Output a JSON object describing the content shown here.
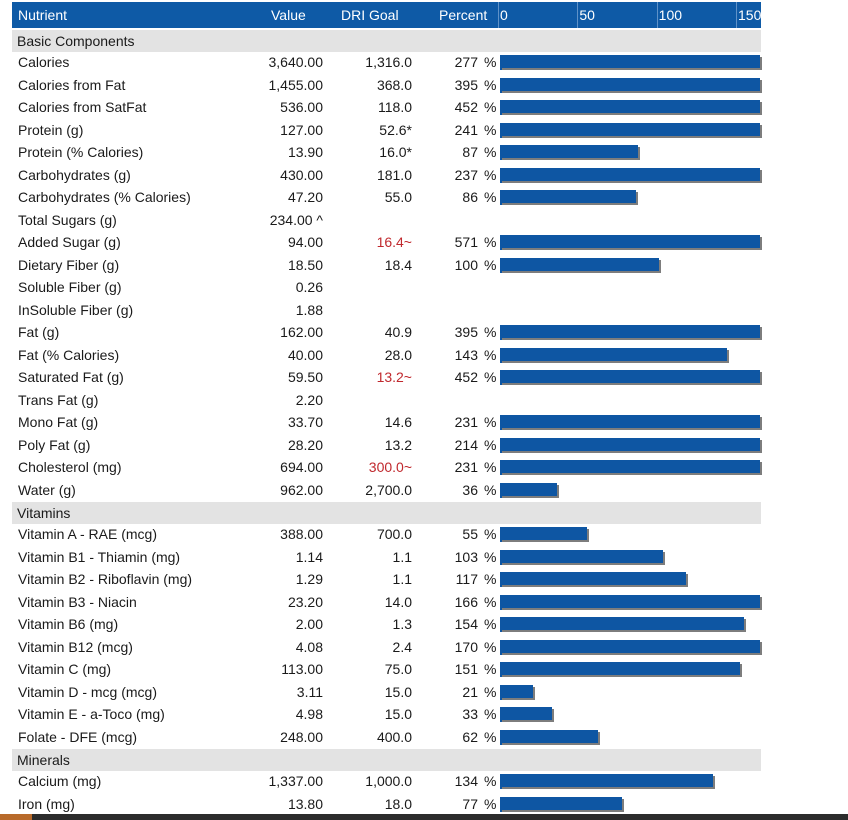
{
  "header": {
    "nutrient": "Nutrient",
    "value": "Value",
    "goal": "DRI Goal",
    "percent": "Percent"
  },
  "chart_data": {
    "type": "bar",
    "orientation": "horizontal",
    "xlim": [
      0,
      150
    ],
    "ticks": [
      "0",
      "50",
      "100",
      "150"
    ],
    "tick_values": [
      0,
      50,
      100,
      150
    ],
    "bar_color": "#0e56a3",
    "header_color": "#0e5aa6",
    "warn_color": "#c0282d"
  },
  "sections": [
    {
      "title": "Basic Components",
      "rows": [
        {
          "name": "Calories",
          "value": "3,640.00",
          "goal": "1,316.0",
          "percent": "277",
          "pct": 277
        },
        {
          "name": "Calories from Fat",
          "value": "1,455.00",
          "goal": "368.0",
          "percent": "395",
          "pct": 395
        },
        {
          "name": "Calories from SatFat",
          "value": "536.00",
          "goal": "118.0",
          "percent": "452",
          "pct": 452
        },
        {
          "name": "Protein (g)",
          "value": "127.00",
          "goal": "52.6*",
          "percent": "241",
          "pct": 241
        },
        {
          "name": "Protein (% Calories)",
          "value": "13.90",
          "goal": "16.0*",
          "percent": "87",
          "pct": 87
        },
        {
          "name": "Carbohydrates (g)",
          "value": "430.00",
          "goal": "181.0",
          "percent": "237",
          "pct": 237
        },
        {
          "name": "Carbohydrates (% Calories)",
          "value": "47.20",
          "goal": "55.0",
          "percent": "86",
          "pct": 86
        },
        {
          "name": "Total Sugars (g)",
          "value": "234.00 ^",
          "goal": "",
          "percent": "",
          "pct": null
        },
        {
          "name": "Added Sugar (g)",
          "value": "94.00",
          "goal": "16.4~",
          "warn": true,
          "percent": "571",
          "pct": 571
        },
        {
          "name": "Dietary Fiber (g)",
          "value": "18.50",
          "goal": "18.4",
          "percent": "100",
          "pct": 100
        },
        {
          "name": "Soluble Fiber (g)",
          "value": "0.26",
          "goal": "",
          "percent": "",
          "pct": null
        },
        {
          "name": "InSoluble Fiber (g)",
          "value": "1.88",
          "goal": "",
          "percent": "",
          "pct": null
        },
        {
          "name": "Fat (g)",
          "value": "162.00",
          "goal": "40.9",
          "percent": "395",
          "pct": 395
        },
        {
          "name": "Fat (% Calories)",
          "value": "40.00",
          "goal": "28.0",
          "percent": "143",
          "pct": 143
        },
        {
          "name": "Saturated Fat (g)",
          "value": "59.50",
          "goal": "13.2~",
          "warn": true,
          "percent": "452",
          "pct": 452
        },
        {
          "name": "Trans Fat (g)",
          "value": "2.20",
          "goal": "",
          "percent": "",
          "pct": null
        },
        {
          "name": "Mono Fat (g)",
          "value": "33.70",
          "goal": "14.6",
          "percent": "231",
          "pct": 231
        },
        {
          "name": "Poly Fat (g)",
          "value": "28.20",
          "goal": "13.2",
          "percent": "214",
          "pct": 214
        },
        {
          "name": "Cholesterol (mg)",
          "value": "694.00",
          "goal": "300.0~",
          "warn": true,
          "percent": "231",
          "pct": 231
        },
        {
          "name": "Water (g)",
          "value": "962.00",
          "goal": "2,700.0",
          "percent": "36",
          "pct": 36
        }
      ]
    },
    {
      "title": "Vitamins",
      "rows": [
        {
          "name": "Vitamin A - RAE (mcg)",
          "value": "388.00",
          "goal": "700.0",
          "percent": "55",
          "pct": 55
        },
        {
          "name": "Vitamin B1 - Thiamin (mg)",
          "value": "1.14",
          "goal": "1.1",
          "percent": "103",
          "pct": 103
        },
        {
          "name": "Vitamin B2 - Riboflavin (mg)",
          "value": "1.29",
          "goal": "1.1",
          "percent": "117",
          "pct": 117
        },
        {
          "name": "Vitamin B3 - Niacin",
          "value": "23.20",
          "goal": "14.0",
          "percent": "166",
          "pct": 166
        },
        {
          "name": "Vitamin B6 (mg)",
          "value": "2.00",
          "goal": "1.3",
          "percent": "154",
          "pct": 154
        },
        {
          "name": "Vitamin B12 (mcg)",
          "value": "4.08",
          "goal": "2.4",
          "percent": "170",
          "pct": 170
        },
        {
          "name": "Vitamin C (mg)",
          "value": "113.00",
          "goal": "75.0",
          "percent": "151",
          "pct": 151
        },
        {
          "name": "Vitamin D - mcg (mcg)",
          "value": "3.11",
          "goal": "15.0",
          "percent": "21",
          "pct": 21
        },
        {
          "name": "Vitamin E - a-Toco (mg)",
          "value": "4.98",
          "goal": "15.0",
          "percent": "33",
          "pct": 33
        },
        {
          "name": "Folate - DFE (mcg)",
          "value": "248.00",
          "goal": "400.0",
          "percent": "62",
          "pct": 62
        }
      ]
    },
    {
      "title": "Minerals",
      "rows": [
        {
          "name": "Calcium (mg)",
          "value": "1,337.00",
          "goal": "1,000.0",
          "percent": "134",
          "pct": 134
        },
        {
          "name": "Iron (mg)",
          "value": "13.80",
          "goal": "18.0",
          "percent": "77",
          "pct": 77
        }
      ]
    }
  ],
  "percent_unit": "%"
}
